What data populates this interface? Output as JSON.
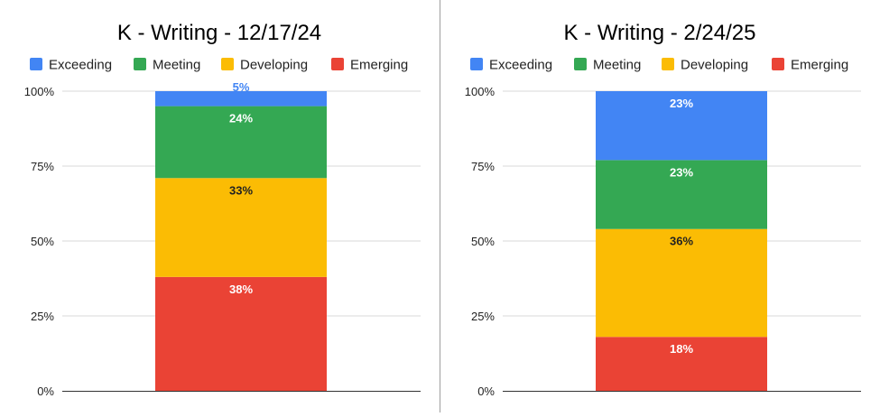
{
  "chart_data": [
    {
      "type": "bar",
      "stacked": true,
      "title": "K - Writing - 12/17/24",
      "categories": [
        ""
      ],
      "series": [
        {
          "name": "Emerging",
          "values": [
            38
          ],
          "color": "#ea4335",
          "label": "38%",
          "label_color": "#ffffff"
        },
        {
          "name": "Developing",
          "values": [
            33
          ],
          "color": "#fbbc04",
          "label": "33%",
          "label_color": "#222222"
        },
        {
          "name": "Meeting",
          "values": [
            24
          ],
          "color": "#34a853",
          "label": "24%",
          "label_color": "#ffffff"
        },
        {
          "name": "Exceeding",
          "values": [
            5
          ],
          "color": "#4285f4",
          "label": "5%",
          "label_color": "#4285f4"
        }
      ],
      "legend": [
        "Exceeding",
        "Meeting",
        "Developing",
        "Emerging"
      ],
      "legend_position": "top",
      "yticks": [
        "0%",
        "25%",
        "50%",
        "75%",
        "100%"
      ],
      "ylim": [
        0,
        100
      ],
      "xlabel": "",
      "ylabel": "",
      "grid": true
    },
    {
      "type": "bar",
      "stacked": true,
      "title": "K - Writing - 2/24/25",
      "categories": [
        ""
      ],
      "series": [
        {
          "name": "Emerging",
          "values": [
            18
          ],
          "color": "#ea4335",
          "label": "18%",
          "label_color": "#ffffff"
        },
        {
          "name": "Developing",
          "values": [
            36
          ],
          "color": "#fbbc04",
          "label": "36%",
          "label_color": "#222222"
        },
        {
          "name": "Meeting",
          "values": [
            23
          ],
          "color": "#34a853",
          "label": "23%",
          "label_color": "#ffffff"
        },
        {
          "name": "Exceeding",
          "values": [
            23
          ],
          "color": "#4285f4",
          "label": "23%",
          "label_color": "#ffffff"
        }
      ],
      "legend": [
        "Exceeding",
        "Meeting",
        "Developing",
        "Emerging"
      ],
      "legend_position": "top",
      "yticks": [
        "0%",
        "25%",
        "50%",
        "75%",
        "100%"
      ],
      "ylim": [
        0,
        100
      ],
      "xlabel": "",
      "ylabel": "",
      "grid": true
    }
  ]
}
